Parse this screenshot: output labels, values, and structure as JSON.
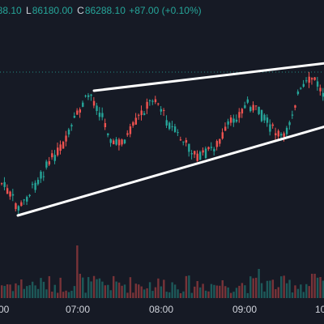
{
  "ohlc_bar": {
    "open_value": "288.10",
    "low_label": "L",
    "low_value": "86180.00",
    "close_label": "C",
    "close_value": "86288.10",
    "change": "+87.00 (+0.10%)",
    "value_color": "#26a69a"
  },
  "time_axis": {
    "labels": [
      "00",
      "07:00",
      "08:00",
      "09:00",
      "10"
    ]
  },
  "colors": {
    "background": "#161a25",
    "up": "#26a69a",
    "down": "#ef5350",
    "trendline": "#ffffff",
    "axis_text": "#d1d4dc",
    "last_price_line": "#26a69a"
  },
  "drawings": [
    {
      "name": "upper-trendline",
      "type": "trend-line"
    },
    {
      "name": "lower-trendline",
      "type": "trend-line"
    }
  ]
}
